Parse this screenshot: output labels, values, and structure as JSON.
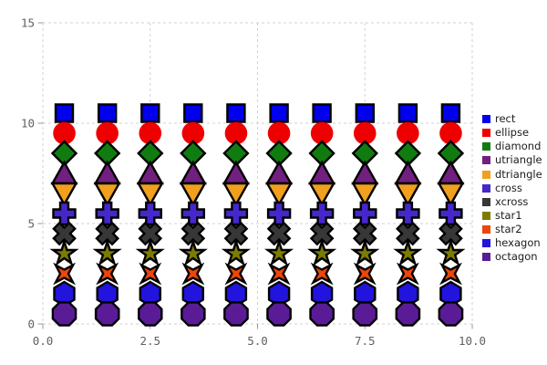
{
  "chart_data": {
    "type": "scatter",
    "title": "",
    "xlabel": "",
    "ylabel": "",
    "xlim": [
      0,
      10
    ],
    "ylim": [
      0,
      15
    ],
    "xtick_values": [
      0,
      2.5,
      5,
      7.5,
      10
    ],
    "xtick_labels": [
      "0.0",
      "2.5",
      "5.0",
      "7.5",
      "10.0"
    ],
    "ytick_values": [
      0,
      5,
      10,
      15
    ],
    "ytick_labels": [
      "0",
      "5",
      "10",
      "15"
    ],
    "grid": true,
    "grid_style": "dashed",
    "legend_position": "right",
    "x": [
      0.5,
      1.5,
      2.5,
      3.5,
      4.5,
      5.5,
      6.5,
      7.5,
      8.5,
      9.5
    ],
    "series": [
      {
        "name": "rect",
        "marker": "rect",
        "y": 10.5,
        "color": "#0000EE",
        "stroke": "#000000"
      },
      {
        "name": "ellipse",
        "marker": "ellipse",
        "y": 9.5,
        "color": "#EE0000",
        "stroke": "none"
      },
      {
        "name": "diamond",
        "marker": "diamond",
        "y": 8.5,
        "color": "#107C10",
        "stroke": "#000000"
      },
      {
        "name": "utriangle",
        "marker": "utriangle",
        "y": 7.5,
        "color": "#71207F",
        "stroke": "#000000"
      },
      {
        "name": "dtriangle",
        "marker": "dtriangle",
        "y": 6.5,
        "color": "#F0A01E",
        "stroke": "#000000"
      },
      {
        "name": "cross",
        "marker": "cross",
        "y": 5.5,
        "color": "#4527CC",
        "stroke": "#000000"
      },
      {
        "name": "xcross",
        "marker": "xcross",
        "y": 4.5,
        "color": "#373737",
        "stroke": "#000000"
      },
      {
        "name": "star1",
        "marker": "star1",
        "y": 3.5,
        "color": "#7C7C00",
        "stroke": "#000000"
      },
      {
        "name": "star2",
        "marker": "star2",
        "y": 2.5,
        "color": "#EC4709",
        "stroke": "#000000"
      },
      {
        "name": "hexagon",
        "marker": "hexagon",
        "y": 1.5,
        "color": "#2214DD",
        "stroke": "#000000"
      },
      {
        "name": "octagon",
        "marker": "octagon",
        "y": 0.5,
        "color": "#5A1C96",
        "stroke": "#000000"
      }
    ],
    "style": {
      "background": "#ffffff",
      "grid_color": "#d2d2d2",
      "tick_color": "#9a9a9a",
      "tick_label_color": "#606060",
      "legend_text_color": "#1b1b1b"
    }
  }
}
